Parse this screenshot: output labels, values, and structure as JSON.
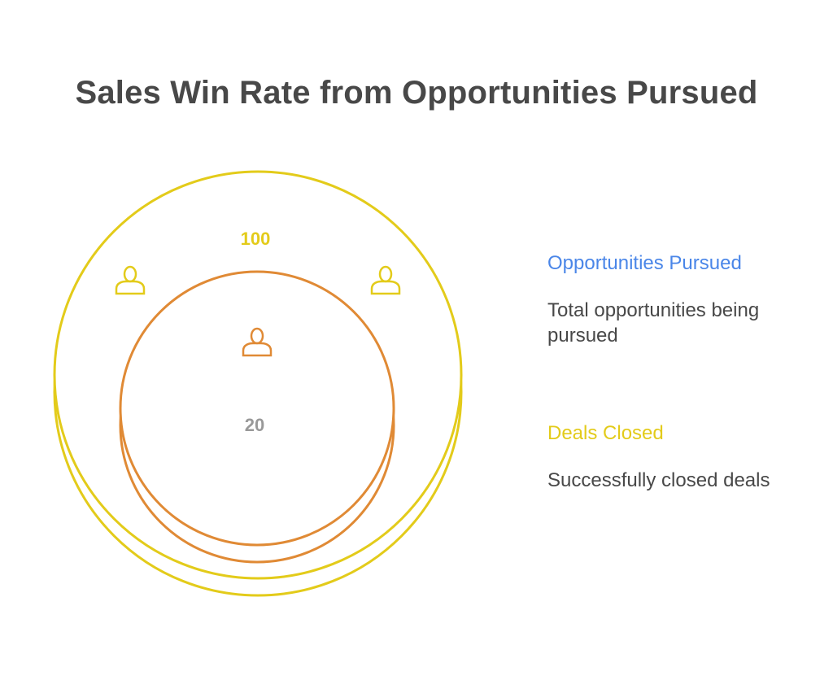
{
  "title": "Sales Win Rate from Opportunities Pursued",
  "colors": {
    "outer": "#E3CB1A",
    "inner": "#E08A35",
    "inner_value": "#999999",
    "heading_blue": "#4A86E8",
    "text": "#484848"
  },
  "diagram": {
    "outer_value": "100",
    "inner_value": "20",
    "outer_icon": "person-icon",
    "inner_icon": "person-icon"
  },
  "legend": [
    {
      "heading": "Opportunities Pursued",
      "description": "Total opportunities being pursued",
      "color": "#4A86E8"
    },
    {
      "heading": "Deals Closed",
      "description": "Successfully closed deals",
      "color": "#E3CB1A"
    }
  ]
}
